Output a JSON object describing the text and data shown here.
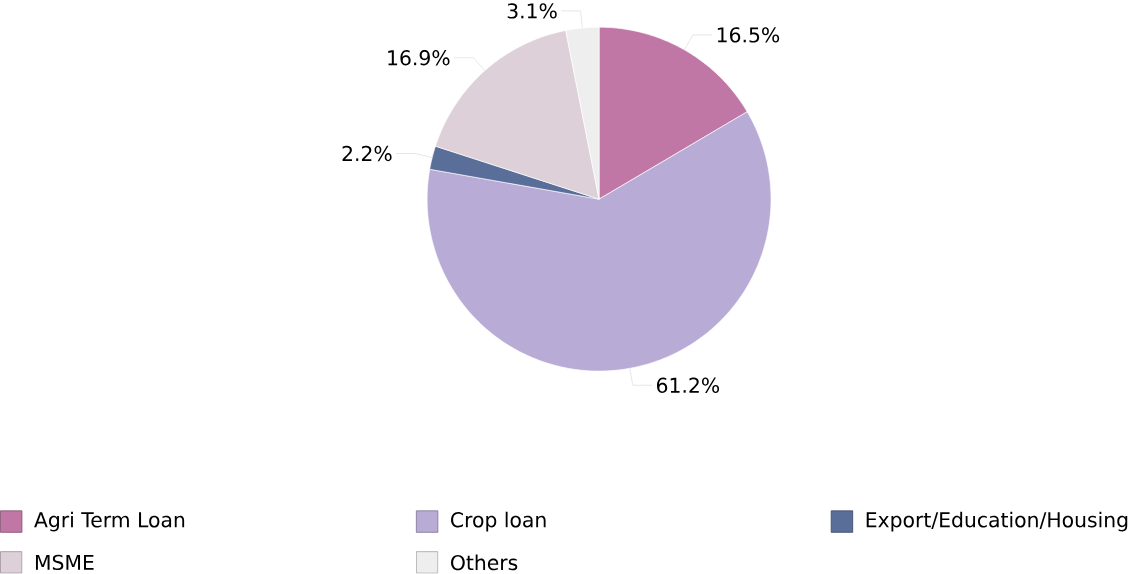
{
  "chart_data": {
    "type": "pie",
    "categories": [
      "Agri Term Loan",
      "Crop loan",
      "Export/Education/Housing",
      "MSME",
      "Others"
    ],
    "values": [
      16.5,
      61.2,
      2.2,
      16.9,
      3.1
    ],
    "colors": [
      "#c077a5",
      "#b8acd6",
      "#5a6e9a",
      "#ddd0d9",
      "#eeeeee"
    ],
    "value_labels": [
      "16.5%",
      "61.2%",
      "2.2%",
      "16.9%",
      "3.1%"
    ],
    "legend": "bottom"
  }
}
